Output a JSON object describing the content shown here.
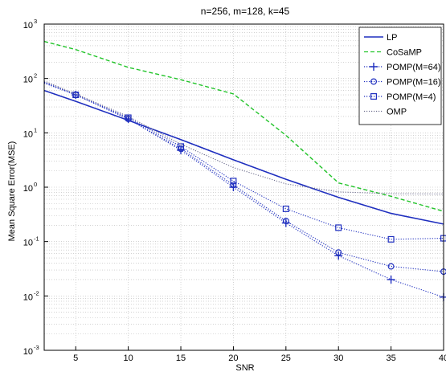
{
  "chart_data": {
    "type": "line",
    "title": "n=256, m=128, k=45",
    "xlabel": "SNR",
    "ylabel": "Mean Square Error(MSE)",
    "xlim": [
      2,
      40
    ],
    "ylim": [
      0.001,
      1000
    ],
    "yscale": "log",
    "grid": true,
    "legend_position": "top-right",
    "xticks": [
      5,
      10,
      15,
      20,
      25,
      30,
      35,
      40
    ],
    "yticks": [
      {
        "base": "10",
        "exp": "-3",
        "value": 0.001
      },
      {
        "base": "10",
        "exp": "-2",
        "value": 0.01
      },
      {
        "base": "10",
        "exp": "-1",
        "value": 0.1
      },
      {
        "base": "10",
        "exp": "0",
        "value": 1
      },
      {
        "base": "10",
        "exp": "1",
        "value": 10
      },
      {
        "base": "10",
        "exp": "2",
        "value": 100
      },
      {
        "base": "10",
        "exp": "3",
        "value": 1000
      }
    ],
    "series": [
      {
        "name": "LP",
        "color": "#1f2fbf",
        "style": "solid",
        "marker": "none",
        "x": [
          2,
          5,
          10,
          15,
          20,
          25,
          30,
          35,
          40
        ],
        "y": [
          60,
          38,
          17,
          7.5,
          3.2,
          1.4,
          0.65,
          0.33,
          0.21
        ]
      },
      {
        "name": "CoSaMP",
        "color": "#22c42a",
        "style": "dashed",
        "marker": "none",
        "x": [
          2,
          5,
          10,
          15,
          20,
          25,
          30,
          35,
          40
        ],
        "y": [
          480,
          340,
          160,
          95,
          52,
          9,
          1.2,
          0.68,
          0.36
        ]
      },
      {
        "name": "POMP(M=64)",
        "color": "#1f2fbf",
        "style": "dotted",
        "marker": "plus",
        "x": [
          2,
          5,
          10,
          15,
          20,
          25,
          30,
          35,
          40
        ],
        "y": [
          82,
          50,
          18,
          4.8,
          1.0,
          0.22,
          0.055,
          0.02,
          0.0095
        ]
      },
      {
        "name": "POMP(M=16)",
        "color": "#1f2fbf",
        "style": "dotted",
        "marker": "circle",
        "x": [
          2,
          5,
          10,
          15,
          20,
          25,
          30,
          35,
          40
        ],
        "y": [
          84,
          50,
          18,
          5.1,
          1.1,
          0.24,
          0.063,
          0.035,
          0.028
        ]
      },
      {
        "name": "POMP(M=4)",
        "color": "#1f2fbf",
        "style": "dotted",
        "marker": "square",
        "x": [
          2,
          5,
          10,
          15,
          20,
          25,
          30,
          35,
          40
        ],
        "y": [
          86,
          50,
          19,
          5.6,
          1.3,
          0.4,
          0.18,
          0.11,
          0.115
        ]
      },
      {
        "name": "OMP",
        "color": "#6e6e8e",
        "style": "dotted",
        "marker": "none",
        "x": [
          2,
          5,
          10,
          15,
          20,
          25,
          30,
          35,
          40
        ],
        "y": [
          90,
          52,
          20,
          6.2,
          2.3,
          1.15,
          0.82,
          0.76,
          0.75
        ]
      }
    ]
  }
}
